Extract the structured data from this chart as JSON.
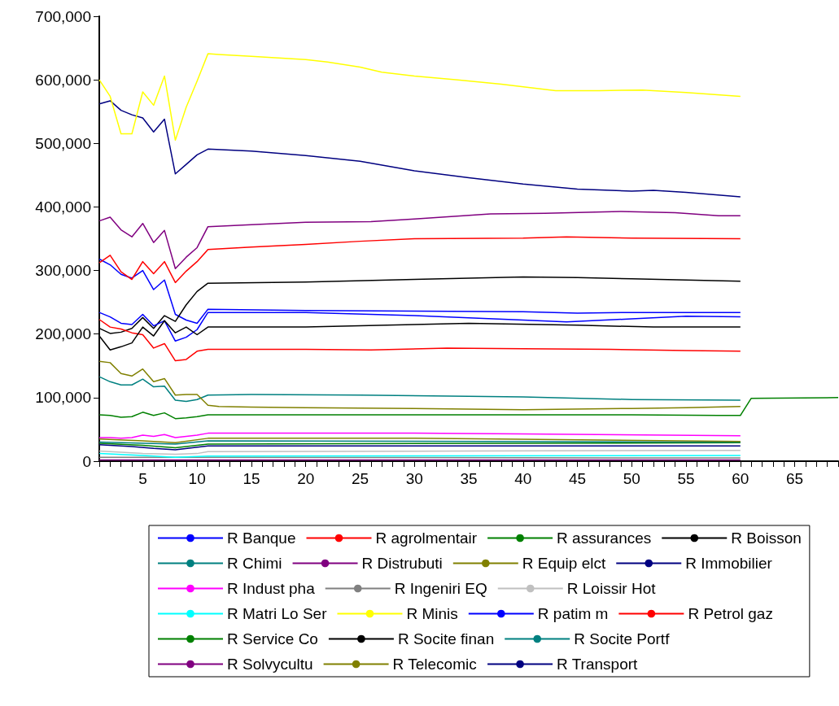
{
  "chart_data": {
    "type": "line",
    "marker": "none",
    "legend": "bottom",
    "xlim": [
      1,
      69
    ],
    "xticks": [
      {
        "value": 1,
        "label": null
      },
      {
        "value": 2,
        "label": null
      },
      {
        "value": 3,
        "label": null
      },
      {
        "value": 4,
        "label": null
      },
      5,
      {
        "value": 6,
        "label": null
      },
      {
        "value": 7,
        "label": null
      },
      {
        "value": 8,
        "label": null
      },
      {
        "value": 9,
        "label": null
      },
      10,
      {
        "value": 11,
        "label": null
      },
      {
        "value": 12,
        "label": null
      },
      {
        "value": 13,
        "label": null
      },
      {
        "value": 14,
        "label": null
      },
      15,
      {
        "value": 16,
        "label": null
      },
      {
        "value": 17,
        "label": null
      },
      {
        "value": 18,
        "label": null
      },
      {
        "value": 19,
        "label": null
      },
      20,
      {
        "value": 21,
        "label": null
      },
      {
        "value": 22,
        "label": null
      },
      {
        "value": 23,
        "label": null
      },
      {
        "value": 24,
        "label": null
      },
      25,
      {
        "value": 26,
        "label": null
      },
      {
        "value": 27,
        "label": null
      },
      {
        "value": 28,
        "label": null
      },
      {
        "value": 29,
        "label": null
      },
      30,
      {
        "value": 31,
        "label": null
      },
      {
        "value": 32,
        "label": null
      },
      {
        "value": 33,
        "label": null
      },
      {
        "value": 34,
        "label": null
      },
      35,
      {
        "value": 36,
        "label": null
      },
      {
        "value": 37,
        "label": null
      },
      {
        "value": 38,
        "label": null
      },
      {
        "value": 39,
        "label": null
      },
      40,
      {
        "value": 41,
        "label": null
      },
      {
        "value": 42,
        "label": null
      },
      {
        "value": 43,
        "label": null
      },
      {
        "value": 44,
        "label": null
      },
      45,
      {
        "value": 46,
        "label": null
      },
      {
        "value": 47,
        "label": null
      },
      {
        "value": 48,
        "label": null
      },
      {
        "value": 49,
        "label": null
      },
      50,
      {
        "value": 51,
        "label": null
      },
      {
        "value": 52,
        "label": null
      },
      {
        "value": 53,
        "label": null
      },
      {
        "value": 54,
        "label": null
      },
      55,
      {
        "value": 56,
        "label": null
      },
      {
        "value": 57,
        "label": null
      },
      {
        "value": 58,
        "label": null
      },
      {
        "value": 59,
        "label": null
      },
      60,
      {
        "value": 61,
        "label": null
      },
      {
        "value": 62,
        "label": null
      },
      {
        "value": 63,
        "label": null
      },
      {
        "value": 64,
        "label": null
      },
      65,
      {
        "value": 66,
        "label": null
      },
      {
        "value": 67,
        "label": null
      },
      {
        "value": 68,
        "label": null
      },
      {
        "value": 69,
        "label": null
      }
    ],
    "ylim": [
      0,
      700000
    ],
    "yticks": [
      {
        "value": 0,
        "label": "0"
      },
      {
        "value": 100000,
        "label": "100,000"
      },
      {
        "value": 200000,
        "label": "200,000"
      },
      {
        "value": 300000,
        "label": "300,000"
      },
      {
        "value": 400000,
        "label": "400,000"
      },
      {
        "value": 500000,
        "label": "500,000"
      },
      {
        "value": 600000,
        "label": "600,000"
      },
      {
        "value": 700000,
        "label": "700,000"
      }
    ],
    "series": [
      {
        "name": "R Banque",
        "color": "#0000ff",
        "x": [
          1,
          2,
          3,
          4,
          5,
          6,
          7,
          8,
          9,
          10,
          11,
          20,
          30,
          40,
          45,
          50,
          60
        ],
        "values": [
          318000,
          309000,
          294000,
          288000,
          300000,
          270000,
          285000,
          231000,
          222000,
          217000,
          239000,
          237000,
          236000,
          235000,
          233000,
          234000,
          234000
        ]
      },
      {
        "name": "R agrolmentair",
        "color": "#ff0000",
        "x": [
          1,
          2,
          3,
          4,
          5,
          6,
          7,
          8,
          9,
          10,
          11,
          15,
          20,
          25,
          30,
          40,
          44,
          50,
          60
        ],
        "values": [
          312000,
          324000,
          298000,
          286000,
          314000,
          295000,
          314000,
          281000,
          299000,
          314000,
          333000,
          337000,
          341000,
          346000,
          350000,
          351000,
          353000,
          351000,
          350000
        ]
      },
      {
        "name": "R assurances",
        "color": "#008000",
        "x": [
          1,
          2,
          3,
          4,
          5,
          6,
          7,
          8,
          9,
          10,
          11,
          30,
          50,
          58,
          60,
          61,
          69
        ],
        "values": [
          73000,
          72000,
          69000,
          70000,
          77000,
          72000,
          76000,
          67000,
          68000,
          70000,
          73000,
          73000,
          73000,
          72000,
          72000,
          99000,
          100000
        ]
      },
      {
        "name": "R Boisson",
        "color": "#000000",
        "x": [
          1,
          2,
          3,
          4,
          5,
          6,
          7,
          8,
          9,
          10,
          11,
          20,
          30,
          40,
          45,
          50,
          60
        ],
        "values": [
          209000,
          201000,
          203000,
          209000,
          226000,
          209000,
          229000,
          220000,
          246000,
          267000,
          280000,
          282000,
          286000,
          290000,
          289000,
          287000,
          283000
        ]
      },
      {
        "name": "R Chimi",
        "color": "#008080",
        "x": [
          1,
          2,
          3,
          4,
          5,
          6,
          7,
          8,
          9,
          10,
          11,
          15,
          25,
          35,
          40,
          50,
          60
        ],
        "values": [
          133000,
          125000,
          120000,
          120000,
          129000,
          117000,
          118000,
          96000,
          94000,
          97000,
          104000,
          105000,
          104000,
          102000,
          101000,
          97000,
          96000
        ]
      },
      {
        "name": "R Distrubuti",
        "color": "#800080",
        "x": [
          1,
          2,
          3,
          4,
          5,
          6,
          7,
          8,
          9,
          10,
          11,
          15,
          20,
          26,
          30,
          37,
          42,
          49,
          54,
          58,
          60
        ],
        "values": [
          378000,
          384000,
          364000,
          353000,
          374000,
          344000,
          363000,
          303000,
          321000,
          336000,
          369000,
          372000,
          376000,
          377000,
          381000,
          389000,
          390000,
          393000,
          391000,
          386000,
          386000
        ]
      },
      {
        "name": "R Equip elct",
        "color": "#808000",
        "x": [
          1,
          2,
          3,
          4,
          5,
          6,
          7,
          8,
          9,
          10,
          11,
          12,
          15,
          20,
          30,
          35,
          40,
          50,
          55,
          60
        ],
        "values": [
          157000,
          155000,
          138000,
          134000,
          145000,
          125000,
          130000,
          104000,
          105000,
          105000,
          88000,
          86000,
          85000,
          84000,
          83000,
          82000,
          81000,
          83000,
          84000,
          86000
        ]
      },
      {
        "name": "R Immobilier",
        "color": "#000080",
        "x": [
          1,
          2,
          3,
          4,
          5,
          6,
          7,
          8,
          9,
          10,
          11,
          15,
          20,
          25,
          30,
          35,
          40,
          45,
          50,
          52,
          55,
          60
        ],
        "values": [
          562000,
          567000,
          552000,
          545000,
          540000,
          518000,
          538000,
          452000,
          467000,
          482000,
          491000,
          488000,
          481000,
          472000,
          457000,
          446000,
          436000,
          428000,
          425000,
          426000,
          423000,
          416000
        ]
      },
      {
        "name": "R Indust pha",
        "color": "#ff00ff",
        "x": [
          1,
          2,
          3,
          4,
          5,
          6,
          7,
          8,
          9,
          10,
          11,
          30,
          40,
          60
        ],
        "values": [
          37000,
          37000,
          36000,
          37000,
          41000,
          39000,
          42000,
          37000,
          39000,
          41000,
          44000,
          44000,
          43000,
          40000
        ]
      },
      {
        "name": "R Ingeniri EQ",
        "color": "#808080",
        "x": [
          1,
          11,
          60
        ],
        "values": [
          6000,
          6000,
          5000
        ]
      },
      {
        "name": "R Loissir Hot",
        "color": "#c0c0c0",
        "x": [
          1,
          5,
          8,
          10,
          11,
          35,
          60
        ],
        "values": [
          16000,
          12000,
          11000,
          12000,
          15000,
          16000,
          17000
        ]
      },
      {
        "name": "R Matri Lo Ser",
        "color": "#00ffff",
        "x": [
          1,
          5,
          8,
          11,
          60
        ],
        "values": [
          12000,
          9000,
          6000,
          8000,
          9000
        ]
      },
      {
        "name": "R Minis",
        "color": "#ffff00",
        "x": [
          1,
          2,
          3,
          4,
          5,
          6,
          7,
          8,
          9,
          10,
          11,
          12,
          15,
          20,
          22,
          25,
          27,
          30,
          34,
          38,
          43,
          47,
          51,
          55,
          60
        ],
        "values": [
          600000,
          574000,
          515000,
          515000,
          581000,
          560000,
          606000,
          505000,
          557000,
          598000,
          641000,
          640000,
          637000,
          632000,
          628000,
          620000,
          612000,
          606000,
          600000,
          593000,
          583000,
          583000,
          584000,
          580000,
          574000
        ]
      },
      {
        "name": "R patim m",
        "color": "#0000ff",
        "x": [
          1,
          2,
          3,
          4,
          5,
          6,
          7,
          8,
          9,
          10,
          11,
          20,
          30,
          40,
          44,
          50,
          55,
          60
        ],
        "values": [
          234000,
          227000,
          217000,
          215000,
          231000,
          213000,
          221000,
          189000,
          195000,
          207000,
          234000,
          234000,
          229000,
          222000,
          219000,
          224000,
          228000,
          227000
        ]
      },
      {
        "name": "R Petrol gaz",
        "color": "#ff0000",
        "x": [
          1,
          2,
          3,
          4,
          5,
          6,
          7,
          8,
          9,
          10,
          11,
          20,
          26,
          33,
          40,
          48,
          55,
          60
        ],
        "values": [
          223000,
          211000,
          208000,
          202000,
          199000,
          178000,
          185000,
          158000,
          160000,
          173000,
          176000,
          176000,
          175000,
          178000,
          177000,
          176000,
          174000,
          173000
        ]
      },
      {
        "name": "R Service Co",
        "color": "#008000",
        "x": [
          1,
          5,
          8,
          11,
          60
        ],
        "values": [
          28000,
          25000,
          21000,
          27000,
          29000
        ]
      },
      {
        "name": "R Socite finan",
        "color": "#000000",
        "x": [
          1,
          2,
          3,
          4,
          5,
          6,
          7,
          8,
          9,
          10,
          11,
          20,
          30,
          35,
          45,
          52,
          60
        ],
        "values": [
          197000,
          175000,
          180000,
          186000,
          211000,
          197000,
          221000,
          202000,
          211000,
          199000,
          211000,
          211000,
          215000,
          217000,
          214000,
          211000,
          211000
        ]
      },
      {
        "name": "R Socite Portf",
        "color": "#008080",
        "x": [
          1,
          8,
          11,
          60
        ],
        "values": [
          30000,
          27000,
          32000,
          30000
        ]
      },
      {
        "name": "R Solvycultu",
        "color": "#800080",
        "x": [
          1,
          60
        ],
        "values": [
          2000,
          2000
        ]
      },
      {
        "name": "R Telecomic",
        "color": "#808000",
        "x": [
          1,
          5,
          8,
          11,
          30,
          60
        ],
        "values": [
          35000,
          32000,
          29000,
          36000,
          36000,
          31000
        ]
      },
      {
        "name": "R Transport",
        "color": "#000080",
        "x": [
          1,
          4,
          6,
          8,
          11,
          60
        ],
        "values": [
          26000,
          23000,
          20000,
          18000,
          24000,
          24000
        ]
      }
    ]
  }
}
